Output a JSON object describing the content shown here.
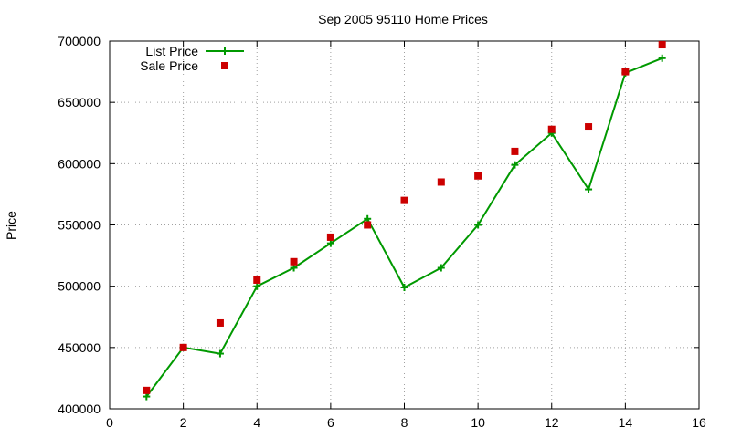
{
  "chart_data": {
    "type": "line",
    "title": "Sep 2005 95110 Home Prices",
    "xlabel": "",
    "ylabel": "Price",
    "xlim": [
      0,
      16
    ],
    "ylim": [
      400000,
      700000
    ],
    "xticks": [
      0,
      2,
      4,
      6,
      8,
      10,
      12,
      14,
      16
    ],
    "yticks": [
      400000,
      450000,
      500000,
      550000,
      600000,
      650000,
      700000
    ],
    "grid": true,
    "legend_position": "top-left",
    "series": [
      {
        "name": "List Price",
        "style": "line-plus",
        "color": "#009900",
        "x": [
          1,
          2,
          3,
          4,
          5,
          6,
          7,
          8,
          9,
          10,
          11,
          12,
          13,
          14,
          15
        ],
        "y": [
          410000,
          450000,
          445000,
          500000,
          515000,
          535000,
          555000,
          499000,
          515000,
          550000,
          599000,
          625000,
          579000,
          674000,
          686000
        ]
      },
      {
        "name": "Sale Price",
        "style": "square",
        "color": "#cc0000",
        "x": [
          1,
          2,
          3,
          4,
          5,
          6,
          7,
          8,
          9,
          10,
          11,
          12,
          13,
          14,
          15
        ],
        "y": [
          415000,
          450000,
          470000,
          505000,
          520000,
          540000,
          550000,
          570000,
          585000,
          590000,
          610000,
          628000,
          630000,
          675000,
          697000
        ]
      }
    ]
  }
}
